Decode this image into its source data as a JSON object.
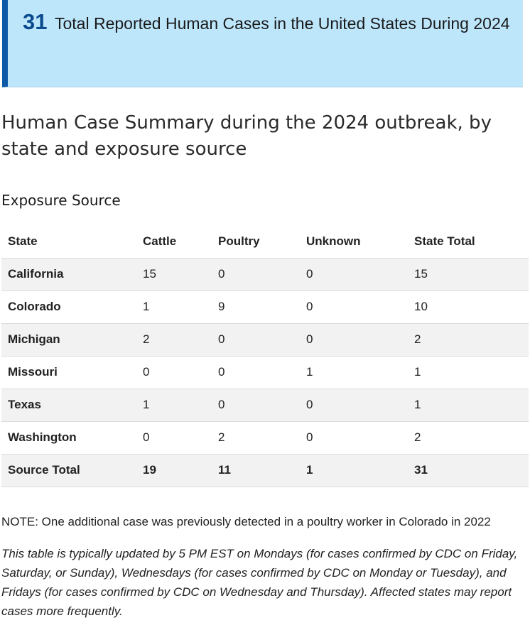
{
  "callout": {
    "number": "31",
    "text": "Total Reported Human Cases in the United States During 2024"
  },
  "heading": "Human Case Summary during the 2024 outbreak, by state and exposure source",
  "subheading": "Exposure Source",
  "table": {
    "headers": [
      "State",
      "Cattle",
      "Poultry",
      "Unknown",
      "State Total"
    ],
    "rows": [
      [
        "California",
        "15",
        "0",
        "0",
        "15"
      ],
      [
        "Colorado",
        "1",
        "9",
        "0",
        "10"
      ],
      [
        "Michigan",
        "2",
        "0",
        "0",
        "2"
      ],
      [
        "Missouri",
        "0",
        "0",
        "1",
        "1"
      ],
      [
        "Texas",
        "1",
        "0",
        "0",
        "1"
      ],
      [
        "Washington",
        "0",
        "2",
        "0",
        "2"
      ]
    ],
    "total_row": [
      "Source Total",
      "19",
      "11",
      "1",
      "31"
    ]
  },
  "note": "NOTE: One additional case was previously detected in a poultry worker in Colorado in 2022",
  "update_text": "This table is typically updated by 5 PM EST on Mondays (for cases confirmed by CDC on Friday, Saturday, or Sunday), Wednesdays (for cases confirmed by CDC on Monday or Tuesday), and Fridays (for cases confirmed by CDC on Wednesday and Thursday). Affected states may report cases more frequently.",
  "colors": {
    "callout_background": "#bde6fb",
    "callout_accent": "#0c5aa7",
    "callout_number": "#0c4a8e",
    "row_stripe": "#f2f2f2"
  }
}
